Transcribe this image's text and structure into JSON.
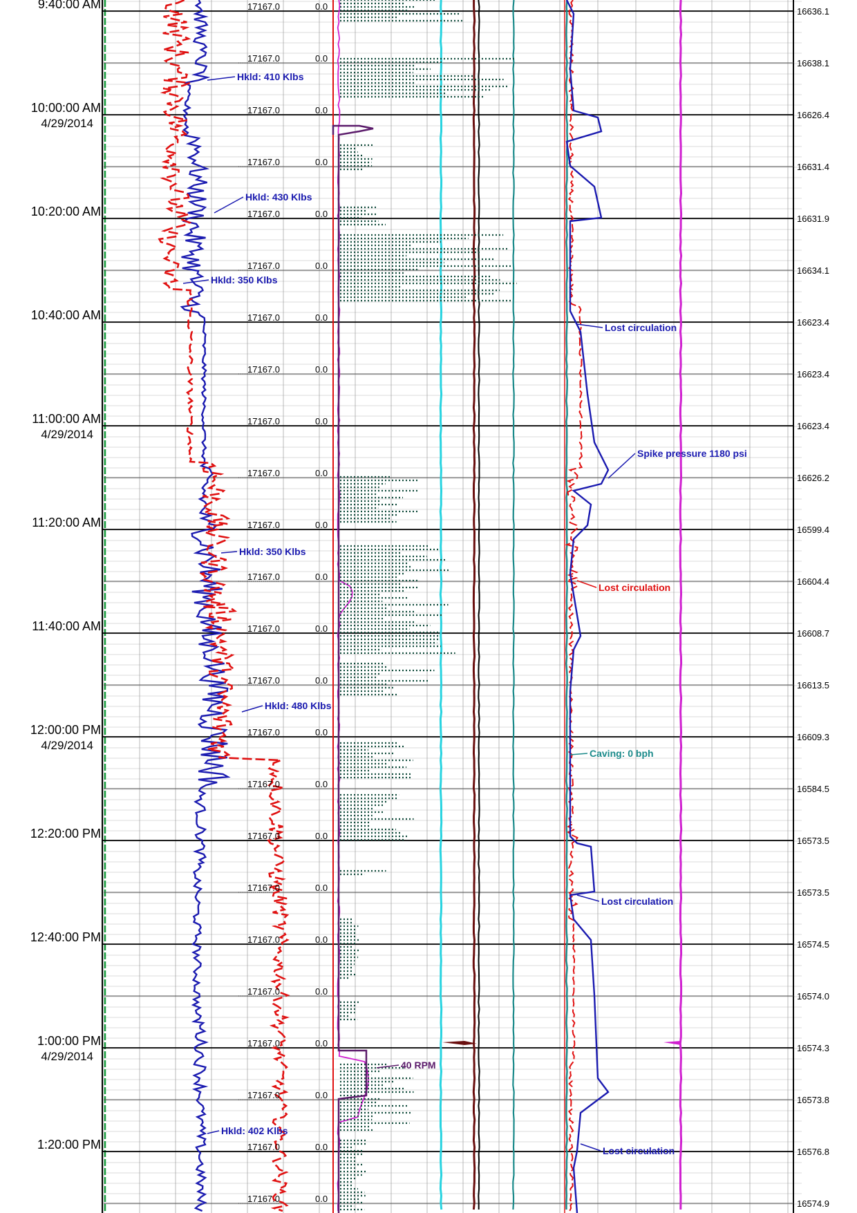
{
  "chart_data": {
    "type": "line",
    "title": "",
    "time_axis": {
      "major": [
        {
          "time": "9:40:00 AM",
          "date": ""
        },
        {
          "time": "10:00:00 AM",
          "date": "4/29/2014"
        },
        {
          "time": "10:20:00 AM",
          "date": ""
        },
        {
          "time": "10:40:00 AM",
          "date": ""
        },
        {
          "time": "11:00:00 AM",
          "date": "4/29/2014"
        },
        {
          "time": "11:20:00 AM",
          "date": ""
        },
        {
          "time": "11:40:00 AM",
          "date": ""
        },
        {
          "time": "12:00:00 PM",
          "date": "4/29/2014"
        },
        {
          "time": "12:20:00 PM",
          "date": ""
        },
        {
          "time": "12:40:00 PM",
          "date": ""
        },
        {
          "time": "1:00:00 PM",
          "date": "4/29/2014"
        },
        {
          "time": "1:20:00 PM",
          "date": ""
        }
      ]
    },
    "column_values": {
      "bit_depth": [
        "17167.0",
        "17167.0",
        "17167.0",
        "17167.0",
        "17167.0",
        "17167.0",
        "17167.0",
        "17167.0",
        "17167.0",
        "17167.0",
        "17167.0",
        "17167.0",
        "17167.0",
        "17167.0",
        "17167.0",
        "17167.0",
        "17167.0",
        "17167.0",
        "17167.0",
        "17167.0",
        "17167.0",
        "17167.0",
        "17167.0",
        "17167.0"
      ],
      "rop": [
        "0.0",
        "0.0",
        "0.0",
        "0.0",
        "0.0",
        "0.0",
        "0.0",
        "0.0",
        "0.0",
        "0.0",
        "0.0",
        "0.0",
        "0.0",
        "0.0",
        "0.0",
        "0.0",
        "0.0",
        "0.0",
        "0.0",
        "0.0",
        "0.0",
        "0.0",
        "0.0",
        "0.0"
      ],
      "right_depth": [
        "16636.1",
        "16638.1",
        "16626.4",
        "16631.4",
        "16631.9",
        "16634.1",
        "16623.4",
        "16623.4",
        "16623.4",
        "16626.2",
        "16599.4",
        "16604.4",
        "16608.7",
        "16613.5",
        "16609.3",
        "16584.5",
        "16573.5",
        "16573.5",
        "16574.5",
        "16574.0",
        "16574.3",
        "16573.8",
        "16576.8",
        "16574.9"
      ]
    },
    "annotations": [
      {
        "text": "Hkld: 410 Klbs",
        "color": "#1a1ab0"
      },
      {
        "text": "Hkld: 430 Klbs",
        "color": "#1a1ab0"
      },
      {
        "text": "Hkld: 350 Klbs",
        "color": "#1a1ab0"
      },
      {
        "text": "Lost circulation",
        "color": "#1a1ab0"
      },
      {
        "text": "Spike pressure 1180 psi",
        "color": "#1a1ab0"
      },
      {
        "text": "Hkld: 350 Klbs",
        "color": "#1a1ab0"
      },
      {
        "text": "Lost circulation",
        "color": "#e01010"
      },
      {
        "text": "Hkld: 480 Klbs",
        "color": "#1a1ab0"
      },
      {
        "text": "Caving: 0 bph",
        "color": "#1a8a8a"
      },
      {
        "text": "Lost circulation",
        "color": "#1a1ab0"
      },
      {
        "text": "40 RPM",
        "color": "#5a1a6a"
      },
      {
        "text": "Hkld: 402 Klbs",
        "color": "#1a1ab0"
      },
      {
        "text": "Lost circulation",
        "color": "#1a1ab0"
      }
    ],
    "colors": {
      "hookload": "#1a1ab0",
      "weight_on_bit": "#e01010",
      "torque_dotted": "#0f4a3a",
      "pressure_lines": "#e01010",
      "rpm": "#5a1a6a",
      "cyan_line": "#27d3e0",
      "maroon_line": "#6a0f0f",
      "teal_line": "#1a8a8a",
      "magenta_line": "#d020d0",
      "green_line": "#1aa040"
    },
    "grid": true
  }
}
